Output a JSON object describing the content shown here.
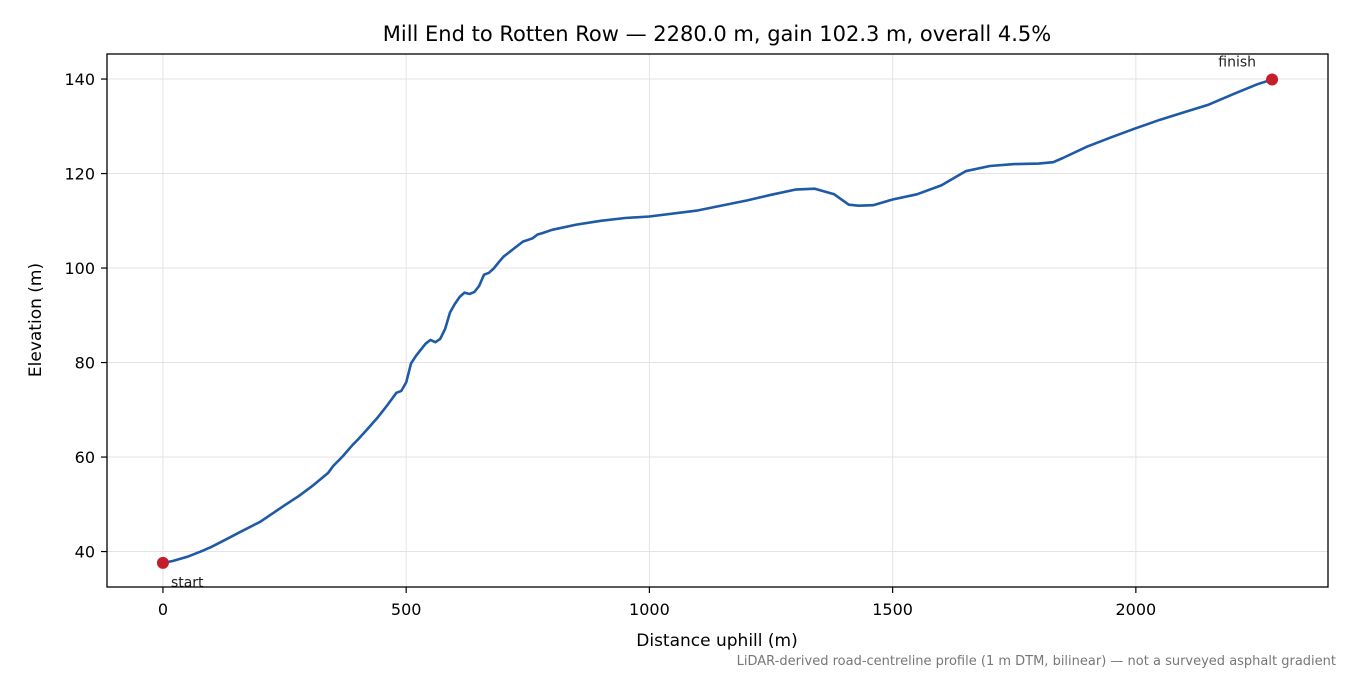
{
  "chart_data": {
    "type": "line",
    "title": "Mill End to Rotten Row — 2280.0 m, gain 102.3 m, overall 4.5%",
    "xlabel": "Distance uphill (m)",
    "ylabel": "Elevation (m)",
    "xlim": [
      -115,
      2395
    ],
    "ylim": [
      32.5,
      145.3
    ],
    "xticks": [
      0,
      500,
      1000,
      1500,
      2000
    ],
    "yticks": [
      40,
      60,
      80,
      100,
      120,
      140
    ],
    "grid": true,
    "series": [
      {
        "color": "#1f5aa6",
        "x": [
          0,
          20,
          50,
          80,
          100,
          130,
          160,
          200,
          230,
          250,
          280,
          310,
          340,
          350,
          370,
          390,
          400,
          420,
          440,
          460,
          480,
          490,
          500,
          510,
          520,
          540,
          550,
          560,
          570,
          580,
          590,
          600,
          610,
          620,
          630,
          640,
          650,
          660,
          670,
          680,
          690,
          700,
          720,
          740,
          760,
          770,
          780,
          800,
          850,
          900,
          950,
          1000,
          1100,
          1200,
          1250,
          1300,
          1340,
          1380,
          1410,
          1430,
          1460,
          1500,
          1550,
          1600,
          1650,
          1700,
          1750,
          1800,
          1830,
          1850,
          1900,
          1950,
          2000,
          2050,
          2100,
          2150,
          2200,
          2250,
          2280
        ],
        "y": [
          37.6,
          38.0,
          38.9,
          40.1,
          41.0,
          42.6,
          44.2,
          46.3,
          48.4,
          49.8,
          51.8,
          54.1,
          56.7,
          58.1,
          60.2,
          62.6,
          63.6,
          65.9,
          68.2,
          70.8,
          73.6,
          74.0,
          75.8,
          79.8,
          81.4,
          84.0,
          84.8,
          84.3,
          85.0,
          87.1,
          90.6,
          92.4,
          93.9,
          94.8,
          94.5,
          94.9,
          96.2,
          98.6,
          99.0,
          99.9,
          101.2,
          102.4,
          104.0,
          105.6,
          106.3,
          107.1,
          107.4,
          108.1,
          109.2,
          110.0,
          110.6,
          110.9,
          112.2,
          114.3,
          115.5,
          116.6,
          116.8,
          115.6,
          113.4,
          113.2,
          113.3,
          114.5,
          115.6,
          117.5,
          120.5,
          121.6,
          122.0,
          122.1,
          122.4,
          123.3,
          125.7,
          127.7,
          129.6,
          131.4,
          133.0,
          134.6,
          136.8,
          138.9,
          139.9
        ]
      }
    ],
    "markers": [
      {
        "x": 0,
        "y": 37.6,
        "label": "start",
        "color": "#c41e2a"
      },
      {
        "x": 2280,
        "y": 139.9,
        "label": "finish",
        "color": "#c41e2a"
      }
    ],
    "footnote": "LiDAR-derived road-centreline profile (1 m DTM, bilinear) — not a surveyed asphalt gradient"
  }
}
